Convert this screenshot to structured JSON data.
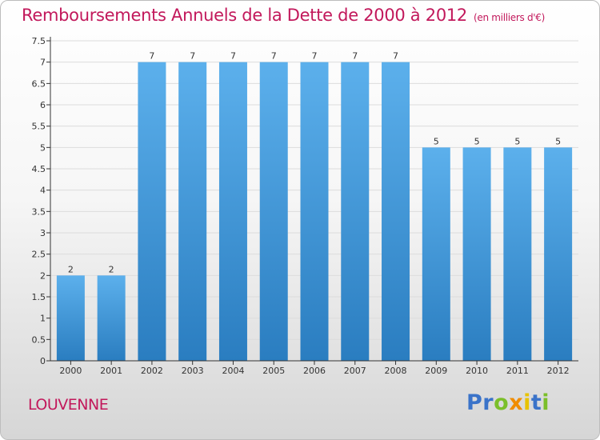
{
  "header": {
    "title": "Remboursements Annuels de la Dette de 2000 à 2012",
    "subtitle": "(en milliers d'€)"
  },
  "footer": {
    "commune": "LOUVENNE",
    "logo_letters": [
      {
        "ch": "P",
        "color": "#3a73c9"
      },
      {
        "ch": "r",
        "color": "#3a73c9"
      },
      {
        "ch": "o",
        "color": "#7bbf2a"
      },
      {
        "ch": "x",
        "color": "#f08c00"
      },
      {
        "ch": "i",
        "color": "#e8c300"
      },
      {
        "ch": "t",
        "color": "#3a73c9"
      },
      {
        "ch": "i",
        "color": "#7bbf2a"
      }
    ]
  },
  "colors": {
    "bar_top": "#5cb0ec",
    "bar_bottom": "#2a7dc0",
    "axis": "#333333",
    "grid": "#dcdcdc",
    "title": "#c2185b"
  },
  "chart_data": {
    "type": "bar",
    "categories": [
      "2000",
      "2001",
      "2002",
      "2003",
      "2004",
      "2005",
      "2006",
      "2007",
      "2008",
      "2009",
      "2010",
      "2011",
      "2012"
    ],
    "values": [
      2,
      2,
      7,
      7,
      7,
      7,
      7,
      7,
      7,
      5,
      5,
      5,
      5
    ],
    "data_labels": [
      "2",
      "2",
      "7",
      "7",
      "7",
      "7",
      "7",
      "7",
      "7",
      "5",
      "5",
      "5",
      "5"
    ],
    "y_ticks": [
      "0",
      "0.5",
      "1",
      "1.5",
      "2",
      "2.5",
      "3",
      "3.5",
      "4",
      "4.5",
      "5",
      "5.5",
      "6",
      "6.5",
      "7",
      "7.5"
    ],
    "ylim": [
      0,
      7.5
    ],
    "grid": true
  }
}
